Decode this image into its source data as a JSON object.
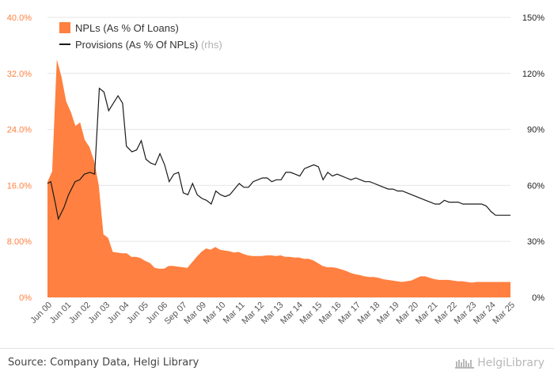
{
  "chart_data": {
    "type": "area+line",
    "title": "",
    "xlabel": "",
    "ylabel": "",
    "y_left": {
      "ticks": [
        "0%",
        "8.00%",
        "16.0%",
        "24.0%",
        "32.0%",
        "40.0%"
      ],
      "range": [
        0,
        40
      ]
    },
    "y_right": {
      "ticks": [
        "0%",
        "30%",
        "60%",
        "90%",
        "120%",
        "150%"
      ],
      "range": [
        0,
        150
      ]
    },
    "x_tick_labels": [
      "Jun 00",
      "Jun 01",
      "Jun 02",
      "Jun 03",
      "Jun 04",
      "Jun 05",
      "Jun 06",
      "Sep 07",
      "Mar 09",
      "Mar 10",
      "Mar 11",
      "Mar 12",
      "Mar 13",
      "Mar 14",
      "Mar 15",
      "Mar 16",
      "Mar 17",
      "Mar 18",
      "Mar 19",
      "Mar 20",
      "Mar 21",
      "Mar 22",
      "Mar 23",
      "Mar 24",
      "Mar 25"
    ],
    "x_range": [
      2000.42,
      2025.25
    ],
    "legend": {
      "placement": "top-left",
      "items": [
        {
          "label": "NPLs (As % Of Loans)",
          "suffix": ""
        },
        {
          "label": "Provisions (As % Of NPLs)",
          "suffix": "(rhs)"
        }
      ]
    },
    "series": [
      {
        "name": "NPLs (As % Of Loans)",
        "axis": "left",
        "kind": "area",
        "color": "#ff8040",
        "x": [
          2000.42,
          2000.67,
          2000.92,
          2001.17,
          2001.42,
          2001.67,
          2001.92,
          2002.17,
          2002.42,
          2002.67,
          2002.92,
          2003.17,
          2003.42,
          2003.67,
          2003.92,
          2004.17,
          2004.42,
          2004.67,
          2004.92,
          2005.17,
          2005.42,
          2005.67,
          2005.92,
          2006.17,
          2006.42,
          2006.67,
          2006.92,
          2007.17,
          2007.42,
          2007.67,
          2007.92,
          2008.17,
          2008.42,
          2008.67,
          2008.92,
          2009.17,
          2009.42,
          2009.67,
          2009.92,
          2010.17,
          2010.42,
          2010.67,
          2010.92,
          2011.17,
          2011.42,
          2011.67,
          2011.92,
          2012.17,
          2012.42,
          2012.67,
          2012.92,
          2013.17,
          2013.42,
          2013.67,
          2013.92,
          2014.17,
          2014.42,
          2014.67,
          2014.92,
          2015.17,
          2015.42,
          2015.67,
          2015.92,
          2016.17,
          2016.42,
          2016.67,
          2016.92,
          2017.17,
          2017.42,
          2017.67,
          2017.92,
          2018.17,
          2018.42,
          2018.67,
          2018.92,
          2019.17,
          2019.42,
          2019.67,
          2019.92,
          2020.17,
          2020.42,
          2020.67,
          2020.92,
          2021.17,
          2021.42,
          2021.67,
          2021.92,
          2022.17,
          2022.42,
          2022.67,
          2022.92,
          2023.17,
          2023.42,
          2023.67,
          2023.92,
          2024.17,
          2024.42,
          2024.67,
          2024.92,
          2025.25
        ],
        "values": [
          16.5,
          18.0,
          34.0,
          31.5,
          28.0,
          26.5,
          24.5,
          25.0,
          22.5,
          21.5,
          19.5,
          16.0,
          9.0,
          8.5,
          6.5,
          6.4,
          6.3,
          6.3,
          5.8,
          5.8,
          5.6,
          5.2,
          4.9,
          4.2,
          4.1,
          4.1,
          4.5,
          4.5,
          4.4,
          4.3,
          4.2,
          5.0,
          5.8,
          6.5,
          7.0,
          6.8,
          7.2,
          6.8,
          6.7,
          6.6,
          6.4,
          6.5,
          6.2,
          6.0,
          5.9,
          5.9,
          5.9,
          6.0,
          6.0,
          5.9,
          6.0,
          5.8,
          5.8,
          5.7,
          5.7,
          5.5,
          5.5,
          5.3,
          4.9,
          4.5,
          4.3,
          4.3,
          4.2,
          4.0,
          3.8,
          3.5,
          3.3,
          3.2,
          3.0,
          2.9,
          2.9,
          2.8,
          2.6,
          2.5,
          2.4,
          2.3,
          2.2,
          2.3,
          2.4,
          2.7,
          3.0,
          3.0,
          2.8,
          2.6,
          2.5,
          2.5,
          2.5,
          2.4,
          2.3,
          2.3,
          2.2,
          2.1,
          2.2,
          2.2,
          2.2,
          2.2,
          2.2,
          2.2,
          2.2,
          2.2
        ]
      },
      {
        "name": "Provisions (As % Of NPLs)",
        "axis": "right",
        "kind": "line",
        "color": "#1a1a1a",
        "x": [
          2000.42,
          2000.6,
          2000.85,
          2001.0,
          2001.3,
          2001.55,
          2001.9,
          2002.15,
          2002.4,
          2002.7,
          2002.95,
          2003.2,
          2003.45,
          2003.7,
          2003.95,
          2004.2,
          2004.45,
          2004.65,
          2004.95,
          2005.2,
          2005.45,
          2005.7,
          2005.95,
          2006.2,
          2006.45,
          2006.7,
          2006.95,
          2007.2,
          2007.45,
          2007.7,
          2007.95,
          2008.2,
          2008.45,
          2008.7,
          2008.95,
          2009.2,
          2009.45,
          2009.7,
          2009.95,
          2010.2,
          2010.45,
          2010.7,
          2010.95,
          2011.2,
          2011.45,
          2011.7,
          2011.95,
          2012.2,
          2012.45,
          2012.7,
          2012.95,
          2013.2,
          2013.45,
          2013.7,
          2013.95,
          2014.2,
          2014.45,
          2014.7,
          2014.95,
          2015.2,
          2015.45,
          2015.7,
          2015.95,
          2016.2,
          2016.45,
          2016.7,
          2016.95,
          2017.2,
          2017.45,
          2017.7,
          2017.95,
          2018.2,
          2018.45,
          2018.7,
          2018.95,
          2019.2,
          2019.45,
          2019.7,
          2019.95,
          2020.2,
          2020.45,
          2020.7,
          2020.95,
          2021.2,
          2021.45,
          2021.7,
          2021.95,
          2022.2,
          2022.45,
          2022.7,
          2022.95,
          2023.2,
          2023.45,
          2023.7,
          2023.95,
          2024.2,
          2024.45,
          2024.7,
          2024.95,
          2025.25
        ],
        "values": [
          61,
          62,
          50,
          42,
          48,
          55,
          62,
          63,
          66,
          67,
          66,
          112,
          110,
          100,
          104,
          108,
          104,
          81,
          78,
          79,
          84,
          74,
          72,
          71,
          77,
          71,
          62,
          66,
          67,
          56,
          55,
          61,
          55,
          53,
          52,
          50,
          57,
          55,
          54,
          55,
          58,
          61,
          59,
          59,
          62,
          63,
          64,
          64,
          62,
          63,
          63,
          67,
          67,
          66,
          65,
          69,
          70,
          71,
          70,
          63,
          67,
          65,
          66,
          65,
          64,
          63,
          64,
          63,
          62,
          62,
          61,
          60,
          59,
          58,
          58,
          57,
          57,
          56,
          55,
          54,
          53,
          52,
          51,
          50,
          50,
          52,
          51,
          51,
          51,
          50,
          50,
          50,
          50,
          50,
          49,
          46,
          44,
          44,
          44,
          44
        ]
      }
    ]
  },
  "footer": {
    "source": "Source: Company Data, Helgi Library",
    "brand": "HelgiLibrary"
  }
}
